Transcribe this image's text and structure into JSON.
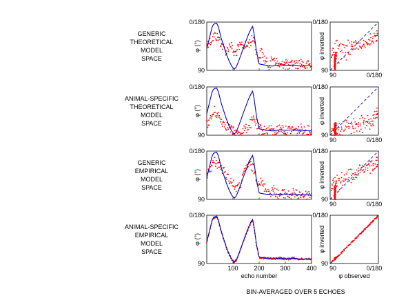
{
  "figure": {
    "footer": "BIN-AVERAGED OVER 5 ECHOES",
    "ytick_top": "0/180",
    "ytick_bottom": "90",
    "xtick_scatter_left": "90",
    "xtick_scatter_right": "0/180",
    "xticks_time": [
      "100",
      "200",
      "300",
      "400"
    ],
    "ylabel_time": "φ (°)",
    "ylabel_scatter": "φ inverted",
    "xlabel_time": "echo number",
    "xlabel_scatter": "φ observed",
    "colors": {
      "observed": "#0000cc",
      "inverted": "#ff0000",
      "diagonal": "#0000cc"
    }
  },
  "rows": [
    {
      "label": [
        "GENERIC",
        "THEORETICAL",
        "MODEL",
        "SPACE"
      ]
    },
    {
      "label": [
        "ANIMAL-SPECIFIC",
        "THEORETICAL",
        "MODEL",
        "SPACE"
      ]
    },
    {
      "label": [
        "GENERIC",
        "EMPIRICAL",
        "MODEL",
        "SPACE"
      ]
    },
    {
      "label": [
        "ANIMAL-SPECIFIC",
        "EMPIRICAL",
        "MODEL",
        "SPACE"
      ]
    }
  ],
  "chart_data": {
    "type": "line",
    "xlabel": "echo number",
    "ylabel": "φ (°)",
    "xlim": [
      0,
      400
    ],
    "ylim": [
      0,
      90
    ],
    "note": "φ axis wraps: top is 0/180, bottom is 90",
    "series": [
      {
        "observed_x": [
          0,
          10,
          20,
          25,
          30,
          38,
          45,
          55,
          65,
          75,
          85,
          95,
          105,
          112,
          120,
          130,
          140,
          150,
          160,
          170,
          175,
          180,
          190,
          200,
          220,
          250,
          280,
          300,
          330,
          360,
          390,
          400
        ],
        "observed_y": [
          50,
          30,
          10,
          5,
          3,
          2,
          10,
          30,
          45,
          60,
          72,
          82,
          88,
          84,
          75,
          62,
          48,
          35,
          22,
          12,
          8,
          20,
          55,
          78,
          80,
          82,
          80,
          81,
          80,
          82,
          81,
          82
        ],
        "inverted_x": [
          0,
          15,
          30,
          45,
          60,
          75,
          90,
          105,
          120,
          135,
          150,
          165,
          180,
          195,
          210,
          225,
          240,
          255,
          270,
          285,
          300,
          315,
          330,
          345,
          360,
          375,
          390,
          400
        ],
        "inverted_y": [
          40,
          35,
          25,
          30,
          45,
          55,
          40,
          60,
          50,
          42,
          45,
          38,
          30,
          70,
          55,
          75,
          80,
          65,
          78,
          82,
          72,
          85,
          76,
          80,
          74,
          83,
          79,
          81
        ]
      },
      {
        "observed_x": [
          0,
          10,
          20,
          25,
          30,
          38,
          45,
          55,
          65,
          75,
          85,
          95,
          105,
          112,
          120,
          130,
          140,
          150,
          160,
          170,
          175,
          180,
          190,
          200,
          220,
          250,
          280,
          300,
          330,
          360,
          390,
          400
        ],
        "observed_y": [
          50,
          30,
          10,
          5,
          3,
          2,
          10,
          30,
          45,
          60,
          72,
          82,
          88,
          84,
          75,
          62,
          48,
          35,
          22,
          12,
          8,
          20,
          55,
          78,
          80,
          82,
          80,
          81,
          80,
          82,
          81,
          82
        ],
        "inverted_x": [
          0,
          15,
          30,
          45,
          60,
          75,
          90,
          105,
          120,
          135,
          150,
          165,
          180,
          195,
          210,
          225,
          240,
          255,
          270,
          285,
          300,
          315,
          330,
          345,
          360,
          375,
          390,
          400
        ],
        "inverted_y": [
          70,
          60,
          45,
          55,
          65,
          72,
          78,
          85,
          88,
          82,
          78,
          70,
          60,
          75,
          80,
          82,
          78,
          84,
          80,
          76,
          82,
          80,
          79,
          83,
          78,
          81,
          80,
          82
        ]
      },
      {
        "observed_x": [
          0,
          10,
          20,
          25,
          30,
          38,
          45,
          55,
          65,
          75,
          85,
          95,
          105,
          112,
          120,
          130,
          140,
          150,
          160,
          170,
          175,
          180,
          190,
          200,
          220,
          250,
          280,
          300,
          330,
          360,
          390,
          400
        ],
        "observed_y": [
          50,
          30,
          10,
          5,
          3,
          2,
          10,
          30,
          45,
          60,
          72,
          82,
          88,
          84,
          75,
          62,
          48,
          35,
          22,
          12,
          8,
          20,
          55,
          78,
          80,
          82,
          80,
          81,
          80,
          82,
          81,
          82
        ],
        "inverted_x": [
          0,
          15,
          30,
          45,
          60,
          75,
          90,
          105,
          120,
          135,
          150,
          165,
          180,
          195,
          210,
          225,
          240,
          255,
          270,
          285,
          300,
          315,
          330,
          345,
          360,
          375,
          390,
          400
        ],
        "inverted_y": [
          45,
          30,
          20,
          25,
          35,
          45,
          55,
          65,
          70,
          55,
          30,
          25,
          35,
          55,
          60,
          70,
          78,
          72,
          80,
          82,
          76,
          84,
          78,
          82,
          80,
          83,
          81,
          82
        ]
      },
      {
        "observed_x": [
          0,
          10,
          20,
          25,
          30,
          38,
          45,
          55,
          65,
          75,
          85,
          95,
          105,
          112,
          120,
          130,
          140,
          150,
          160,
          170,
          175,
          180,
          190,
          200,
          220,
          250,
          280,
          300,
          330,
          360,
          390,
          400
        ],
        "observed_y": [
          50,
          30,
          10,
          5,
          3,
          2,
          10,
          30,
          45,
          60,
          72,
          82,
          88,
          84,
          75,
          62,
          48,
          35,
          22,
          12,
          8,
          20,
          55,
          78,
          80,
          82,
          80,
          81,
          80,
          82,
          81,
          82
        ],
        "inverted_x": [
          0,
          10,
          20,
          25,
          30,
          38,
          45,
          55,
          65,
          75,
          85,
          95,
          105,
          112,
          120,
          130,
          140,
          150,
          160,
          170,
          175,
          180,
          190,
          200,
          220,
          250,
          280,
          300,
          330,
          360,
          390,
          400
        ],
        "inverted_y": [
          50,
          31,
          11,
          6,
          4,
          3,
          11,
          31,
          46,
          61,
          73,
          83,
          88,
          84,
          76,
          63,
          49,
          36,
          23,
          13,
          9,
          21,
          56,
          78,
          80,
          81,
          80,
          82,
          80,
          82,
          81,
          82
        ]
      }
    ]
  }
}
